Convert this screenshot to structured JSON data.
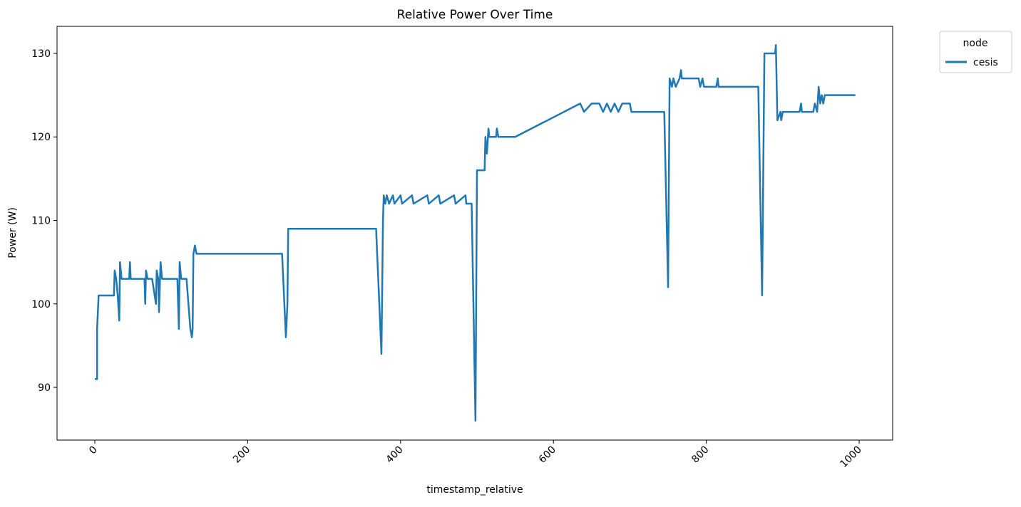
{
  "chart_data": {
    "type": "line",
    "title": "Relative Power Over Time",
    "x_label": "timestamp_relative",
    "y_label": "Power (W)",
    "legend_title": "node",
    "legend_position": "outside upper right",
    "x": [
      0,
      3,
      3,
      5,
      25,
      26,
      28,
      30,
      32,
      33,
      35,
      45,
      46,
      47,
      65,
      66,
      67,
      69,
      75,
      80,
      81,
      83,
      84,
      86,
      88,
      108,
      110,
      111,
      113,
      120,
      125,
      127,
      128,
      129,
      131,
      133,
      245,
      250,
      252,
      253,
      368,
      375,
      377,
      378,
      380,
      382,
      385,
      390,
      392,
      400,
      402,
      415,
      417,
      435,
      437,
      450,
      452,
      470,
      472,
      485,
      486,
      493,
      498,
      500,
      510,
      511,
      513,
      515,
      516,
      525,
      526,
      528,
      550,
      635,
      640,
      650,
      660,
      665,
      670,
      675,
      680,
      685,
      690,
      700,
      702,
      745,
      750,
      752,
      755,
      757,
      760,
      765,
      767,
      768,
      790,
      792,
      795,
      797,
      813,
      815,
      816,
      868,
      873,
      876,
      890,
      891,
      893,
      897,
      898,
      900,
      922,
      924,
      925,
      940,
      942,
      945,
      947,
      949,
      951,
      953,
      955,
      995
    ],
    "series": [
      {
        "name": "cesis",
        "color": "#1f77b4",
        "values": [
          91,
          91,
          97,
          101,
          101,
          104,
          103,
          101,
          98,
          105,
          103,
          103,
          105,
          103,
          103,
          100,
          104,
          103,
          103,
          100,
          104,
          103,
          99,
          105,
          103,
          103,
          97,
          105,
          103,
          103,
          97,
          96,
          97,
          106,
          107,
          106,
          106,
          96,
          100,
          109,
          109,
          94,
          110,
          113,
          112,
          113,
          112,
          113,
          112,
          113,
          112,
          113,
          112,
          113,
          112,
          113,
          112,
          113,
          112,
          113,
          112,
          112,
          86,
          116,
          116,
          120,
          118,
          121,
          120,
          120,
          121,
          120,
          120,
          124,
          123,
          124,
          124,
          123,
          124,
          123,
          124,
          123,
          124,
          124,
          123,
          123,
          102,
          127,
          126,
          127,
          126,
          127,
          128,
          127,
          127,
          126,
          127,
          126,
          126,
          127,
          126,
          126,
          101,
          130,
          130,
          131,
          122,
          123,
          122,
          123,
          123,
          124,
          123,
          123,
          124,
          123,
          126,
          124,
          125,
          124,
          125,
          125
        ]
      }
    ],
    "xlim": [
      -49.4,
      1043.8
    ],
    "ylim": [
      83.69,
      133.24
    ],
    "xticks": [
      0,
      200,
      400,
      600,
      800,
      1000
    ],
    "yticks": [
      90,
      100,
      110,
      120,
      130
    ]
  }
}
